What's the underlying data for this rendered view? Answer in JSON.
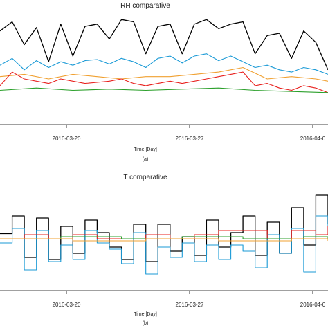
{
  "chart_data": [
    {
      "type": "line",
      "title": "RH comparative",
      "xlabel": "Time [Day]",
      "panel_label": "(a)",
      "x_ticks": [
        "2016-03-20",
        "2016-03-27",
        "2016-04-0"
      ],
      "x_range_days": [
        0,
        27
      ],
      "y_range": [
        0,
        100
      ],
      "grid": false,
      "series": [
        {
          "color": "#000000",
          "x": [
            0,
            1,
            2,
            3,
            4,
            5,
            6,
            7,
            8,
            9,
            10,
            11,
            12,
            13,
            14,
            15,
            16,
            17,
            18,
            19,
            20,
            21,
            22,
            23,
            24,
            25,
            26,
            27
          ],
          "y": [
            82,
            90,
            70,
            85,
            55,
            88,
            60,
            86,
            88,
            75,
            92,
            90,
            62,
            86,
            88,
            62,
            88,
            92,
            84,
            88,
            90,
            62,
            78,
            80,
            58,
            82,
            72,
            48
          ]
        },
        {
          "color": "#1a9ad6",
          "x": [
            0,
            1,
            2,
            3,
            4,
            5,
            6,
            7,
            8,
            9,
            10,
            11,
            12,
            13,
            14,
            15,
            16,
            17,
            18,
            19,
            20,
            21,
            22,
            23,
            24,
            25,
            26,
            27
          ],
          "y": [
            52,
            58,
            48,
            56,
            50,
            55,
            52,
            56,
            57,
            53,
            58,
            55,
            50,
            58,
            60,
            54,
            60,
            62,
            56,
            60,
            55,
            50,
            52,
            48,
            46,
            50,
            48,
            44
          ]
        },
        {
          "color": "#f0a030",
          "x": [
            0,
            2,
            4,
            6,
            8,
            10,
            12,
            14,
            16,
            18,
            20,
            22,
            24,
            26,
            27
          ],
          "y": [
            42,
            44,
            40,
            44,
            42,
            40,
            42,
            42,
            44,
            46,
            50,
            40,
            42,
            40,
            38
          ]
        },
        {
          "color": "#e8211e",
          "x": [
            0,
            1,
            2,
            3,
            4,
            5,
            6,
            7,
            8,
            9,
            10,
            11,
            12,
            13,
            14,
            15,
            16,
            17,
            18,
            19,
            20,
            21,
            22,
            23,
            24,
            25,
            26,
            27
          ],
          "y": [
            34,
            46,
            40,
            38,
            36,
            40,
            38,
            36,
            37,
            38,
            40,
            36,
            34,
            36,
            38,
            36,
            38,
            40,
            42,
            44,
            46,
            34,
            36,
            32,
            30,
            34,
            32,
            28
          ]
        },
        {
          "color": "#2ca02c",
          "x": [
            0,
            3,
            6,
            9,
            12,
            15,
            18,
            21,
            24,
            27
          ],
          "y": [
            30,
            32,
            30,
            31,
            30,
            31,
            32,
            30,
            29,
            28
          ]
        }
      ]
    },
    {
      "type": "line",
      "title": "T comparative",
      "xlabel": "Time [Day]",
      "panel_label": "(b)",
      "x_ticks": [
        "2016-03-20",
        "2016-03-27",
        "2016-04-0"
      ],
      "x_range_days": [
        0,
        27
      ],
      "y_range": [
        -50,
        50
      ],
      "grid": false,
      "series": [
        {
          "color": "#000000",
          "x": [
            0,
            1,
            2,
            3,
            4,
            5,
            6,
            7,
            8,
            9,
            10,
            11,
            12,
            13,
            14,
            15,
            16,
            17,
            18,
            19,
            20,
            21,
            22,
            23,
            24,
            25,
            26,
            27
          ],
          "y": [
            5,
            22,
            -18,
            20,
            -20,
            12,
            -14,
            18,
            6,
            -8,
            -20,
            14,
            -22,
            14,
            -12,
            2,
            -16,
            18,
            -8,
            6,
            22,
            -16,
            16,
            -14,
            30,
            -6,
            42,
            14
          ]
        },
        {
          "color": "#1a9ad6",
          "x": [
            0,
            1,
            2,
            3,
            4,
            5,
            6,
            7,
            8,
            9,
            10,
            11,
            12,
            13,
            14,
            15,
            16,
            17,
            18,
            19,
            20,
            21,
            22,
            23,
            24,
            25,
            26,
            27
          ],
          "y": [
            -4,
            10,
            -30,
            8,
            -22,
            -6,
            -20,
            8,
            -4,
            -10,
            -24,
            6,
            -34,
            -8,
            -18,
            -4,
            -22,
            -6,
            -20,
            -6,
            -12,
            -28,
            4,
            -14,
            10,
            -32,
            22,
            4
          ]
        },
        {
          "color": "#e8211e",
          "x": [
            0,
            2,
            4,
            6,
            8,
            10,
            12,
            14,
            16,
            18,
            20,
            22,
            24,
            26,
            27
          ],
          "y": [
            0,
            4,
            0,
            4,
            0,
            0,
            4,
            0,
            4,
            8,
            8,
            0,
            8,
            4,
            12
          ]
        },
        {
          "color": "#2ca02c",
          "x": [
            0,
            5,
            10,
            15,
            20,
            25,
            27
          ],
          "y": [
            0,
            2,
            0,
            2,
            0,
            2,
            0
          ]
        },
        {
          "color": "#f0a030",
          "x": [
            0,
            6,
            12,
            18,
            24,
            27
          ],
          "y": [
            0,
            -2,
            0,
            -2,
            0,
            -2
          ]
        }
      ]
    }
  ]
}
